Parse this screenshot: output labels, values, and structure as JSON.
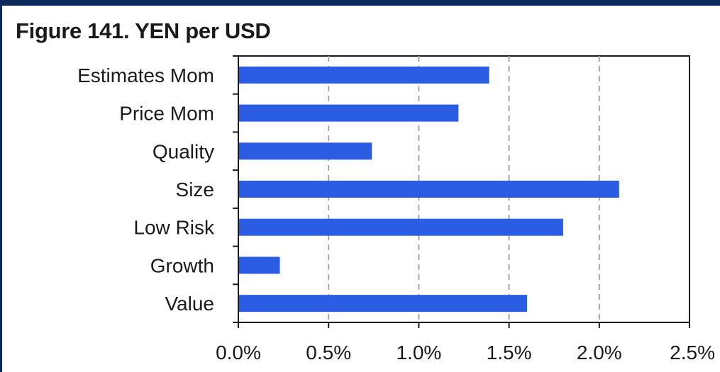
{
  "title": "Figure 141. YEN per USD",
  "colors": {
    "bar": "#2a5de3",
    "frame": "#0b2a5b",
    "grid": "#a6a6a6",
    "axis": "#1a1a1a"
  },
  "chart_data": {
    "type": "bar",
    "orientation": "horizontal",
    "title": "Figure 141. YEN per USD",
    "xlabel": "",
    "ylabel": "",
    "categories": [
      "Estimates Mom",
      "Price Mom",
      "Quality",
      "Size",
      "Low Risk",
      "Growth",
      "Value"
    ],
    "values": [
      0.0139,
      0.0122,
      0.0074,
      0.0211,
      0.018,
      0.0023,
      0.016
    ],
    "xlim": [
      0,
      0.025
    ],
    "x_ticks": [
      0,
      0.005,
      0.01,
      0.015,
      0.02,
      0.025
    ],
    "x_tick_labels": [
      "0.0%",
      "0.5%",
      "1.0%",
      "1.5%",
      "2.0%",
      "2.5%"
    ],
    "grid": "vertical dashed",
    "legend": "none"
  }
}
